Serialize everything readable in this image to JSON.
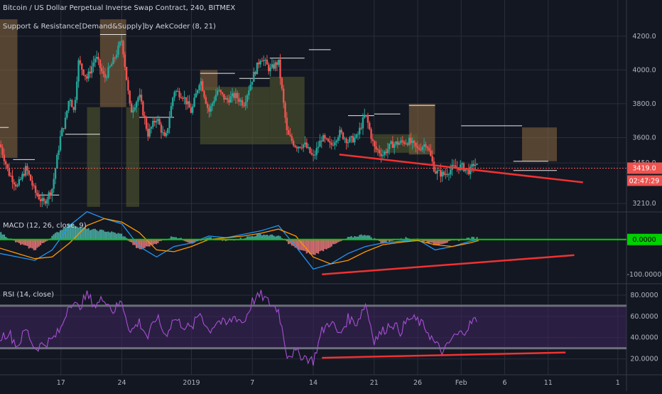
{
  "header": {
    "symbol_line": "Bitcoin / US Dollar Perpetual Inverse Swap Contract, 240, BITMEX",
    "indicator_line": "Support & Resistance[Demand&Supply]by AekCoder (8, 21)"
  },
  "colors": {
    "background": "#131722",
    "grid": "#2a2e39",
    "up": "#26a69a",
    "down": "#ef5350",
    "supply_zone": "#8d6a3f",
    "demand_zone": "#565c2d",
    "trendline": "#f03232",
    "macd_line": "#2196f3",
    "signal_line": "#ff9800",
    "macd_zero": "#00d000",
    "rsi_line": "#a84fd6",
    "rsi_band": "#3b2458",
    "price_tag": "#ef5350"
  },
  "chart_data": [
    {
      "type": "candlestick",
      "panel": "price",
      "title": "Bitcoin / US Dollar Perpetual Inverse Swap Contract, 240, BITMEX",
      "ylim": [
        3160,
        4330
      ],
      "y_ticks": [
        "4200.0",
        "4000.0",
        "3800.0",
        "3600.0",
        "3450.0",
        "3210.0"
      ],
      "y_tick_values": [
        4200,
        4000,
        3800,
        3600,
        3450,
        3210
      ],
      "last_price": "3419.0",
      "countdown": "02:47:29",
      "x_labels": [
        "17",
        "24",
        "2019",
        "7",
        "14",
        "21",
        "26",
        "Feb",
        "6",
        "11",
        "1"
      ],
      "x_label_days": [
        17,
        24,
        32,
        39,
        46,
        53,
        58,
        63,
        68,
        73,
        81
      ],
      "x_range_days": [
        10,
        82
      ],
      "close_path": [
        [
          10,
          3560
        ],
        [
          11,
          3390
        ],
        [
          12,
          3310
        ],
        [
          13,
          3420
        ],
        [
          14,
          3280
        ],
        [
          15,
          3210
        ],
        [
          16,
          3300
        ],
        [
          17,
          3620
        ],
        [
          17.5,
          3700
        ],
        [
          18,
          3850
        ],
        [
          18.5,
          3750
        ],
        [
          19,
          4050
        ],
        [
          20,
          3950
        ],
        [
          21,
          4080
        ],
        [
          22,
          3950
        ],
        [
          23,
          4050
        ],
        [
          24,
          4180
        ],
        [
          25,
          3750
        ],
        [
          26,
          3850
        ],
        [
          27,
          3620
        ],
        [
          28,
          3720
        ],
        [
          29,
          3580
        ],
        [
          30,
          3880
        ],
        [
          31,
          3850
        ],
        [
          32,
          3750
        ],
        [
          33,
          3950
        ],
        [
          34,
          3750
        ],
        [
          35,
          3880
        ],
        [
          36,
          3820
        ],
        [
          37,
          3850
        ],
        [
          38,
          3800
        ],
        [
          39,
          3950
        ],
        [
          40,
          4080
        ],
        [
          41,
          4000
        ],
        [
          42,
          4050
        ],
        [
          43,
          3620
        ],
        [
          44,
          3550
        ],
        [
          45,
          3560
        ],
        [
          46,
          3480
        ],
        [
          47,
          3600
        ],
        [
          48,
          3550
        ],
        [
          49,
          3630
        ],
        [
          50,
          3580
        ],
        [
          51,
          3600
        ],
        [
          52,
          3740
        ],
        [
          53,
          3540
        ],
        [
          54,
          3500
        ],
        [
          55,
          3560
        ],
        [
          56,
          3570
        ],
        [
          57,
          3580
        ],
        [
          58,
          3530
        ],
        [
          59,
          3570
        ],
        [
          60,
          3400
        ],
        [
          61,
          3380
        ],
        [
          62,
          3420
        ],
        [
          63,
          3430
        ],
        [
          64,
          3400
        ],
        [
          64.5,
          3450
        ],
        [
          65,
          3419
        ]
      ],
      "supply_zones": [
        {
          "x0": 10,
          "x1": 12,
          "y0": 3480,
          "y1": 4300
        },
        {
          "x0": 21.5,
          "x1": 24.5,
          "y0": 3780,
          "y1": 4300
        },
        {
          "x0": 33,
          "x1": 35,
          "y0": 3880,
          "y1": 4000
        },
        {
          "x0": 57,
          "x1": 60,
          "y0": 3500,
          "y1": 3800
        },
        {
          "x0": 70,
          "x1": 74,
          "y0": 3460,
          "y1": 3660
        }
      ],
      "demand_zones": [
        {
          "x0": 20,
          "x1": 21.5,
          "y0": 3190,
          "y1": 3780
        },
        {
          "x0": 24.5,
          "x1": 26,
          "y0": 3190,
          "y1": 3780
        },
        {
          "x0": 33,
          "x1": 41,
          "y0": 3560,
          "y1": 3900
        },
        {
          "x0": 41,
          "x1": 45,
          "y0": 3560,
          "y1": 3960
        },
        {
          "x0": 53,
          "x1": 58,
          "y0": 3510,
          "y1": 3620
        }
      ],
      "levels": [
        {
          "x0": 10,
          "x1": 11,
          "y": 3660
        },
        {
          "x0": 11.5,
          "x1": 14,
          "y": 3470
        },
        {
          "x0": 14.2,
          "x1": 16.8,
          "y": 3260
        },
        {
          "x0": 17.5,
          "x1": 21.5,
          "y": 3620
        },
        {
          "x0": 21.5,
          "x1": 24.5,
          "y": 4210
        },
        {
          "x0": 26,
          "x1": 30,
          "y": 3720
        },
        {
          "x0": 33,
          "x1": 37,
          "y": 3980
        },
        {
          "x0": 37.5,
          "x1": 41,
          "y": 3950
        },
        {
          "x0": 41,
          "x1": 45,
          "y": 4070
        },
        {
          "x0": 45.5,
          "x1": 48,
          "y": 4120
        },
        {
          "x0": 50,
          "x1": 53,
          "y": 3730
        },
        {
          "x0": 53,
          "x1": 56,
          "y": 3740
        },
        {
          "x0": 57,
          "x1": 60,
          "y": 3790
        },
        {
          "x0": 63,
          "x1": 66,
          "y": 3670
        },
        {
          "x0": 66,
          "x1": 70,
          "y": 3670
        },
        {
          "x0": 69,
          "x1": 73,
          "y": 3460
        },
        {
          "x0": 69,
          "x1": 74,
          "y": 3405
        }
      ],
      "trendline": {
        "x0": 49,
        "y0": 3500,
        "x1": 77,
        "y1": 3335
      }
    },
    {
      "type": "histogram+line",
      "panel": "macd",
      "title": "MACD (12, 26, close, 9)",
      "ylim": [
        -125,
        75
      ],
      "y_ticks": [
        "0.0000",
        "-100.0000"
      ],
      "y_tick_values": [
        0,
        -100
      ],
      "series": [
        {
          "name": "histogram",
          "points": [
            [
              10,
              20
            ],
            [
              12,
              -10
            ],
            [
              14,
              -30
            ],
            [
              16,
              10
            ],
            [
              18,
              45
            ],
            [
              20,
              30
            ],
            [
              22,
              25
            ],
            [
              24,
              15
            ],
            [
              26,
              -30
            ],
            [
              28,
              -10
            ],
            [
              30,
              10
            ],
            [
              32,
              -10
            ],
            [
              34,
              5
            ],
            [
              36,
              -5
            ],
            [
              38,
              5
            ],
            [
              40,
              15
            ],
            [
              42,
              10
            ],
            [
              44,
              -25
            ],
            [
              46,
              -45
            ],
            [
              48,
              -20
            ],
            [
              50,
              5
            ],
            [
              52,
              15
            ],
            [
              54,
              -10
            ],
            [
              56,
              5
            ],
            [
              58,
              2
            ],
            [
              60,
              -15
            ],
            [
              62,
              -5
            ],
            [
              64,
              5
            ],
            [
              65,
              5
            ]
          ]
        },
        {
          "name": "macd",
          "points": [
            [
              10,
              -40
            ],
            [
              12,
              -50
            ],
            [
              14,
              -60
            ],
            [
              16,
              -30
            ],
            [
              18,
              40
            ],
            [
              20,
              80
            ],
            [
              22,
              60
            ],
            [
              24,
              45
            ],
            [
              26,
              -20
            ],
            [
              28,
              -50
            ],
            [
              30,
              -20
            ],
            [
              32,
              -10
            ],
            [
              34,
              10
            ],
            [
              36,
              5
            ],
            [
              38,
              15
            ],
            [
              40,
              25
            ],
            [
              42,
              40
            ],
            [
              44,
              -20
            ],
            [
              46,
              -85
            ],
            [
              48,
              -70
            ],
            [
              50,
              -40
            ],
            [
              52,
              -20
            ],
            [
              54,
              -10
            ],
            [
              56,
              -5
            ],
            [
              58,
              0
            ],
            [
              60,
              -30
            ],
            [
              62,
              -20
            ],
            [
              64,
              -5
            ],
            [
              65,
              0
            ]
          ]
        },
        {
          "name": "signal",
          "points": [
            [
              10,
              -25
            ],
            [
              12,
              -40
            ],
            [
              14,
              -55
            ],
            [
              16,
              -50
            ],
            [
              18,
              -10
            ],
            [
              20,
              40
            ],
            [
              22,
              60
            ],
            [
              24,
              50
            ],
            [
              26,
              20
            ],
            [
              28,
              -30
            ],
            [
              30,
              -35
            ],
            [
              32,
              -20
            ],
            [
              34,
              0
            ],
            [
              36,
              5
            ],
            [
              38,
              10
            ],
            [
              40,
              18
            ],
            [
              42,
              30
            ],
            [
              44,
              10
            ],
            [
              46,
              -50
            ],
            [
              48,
              -70
            ],
            [
              50,
              -60
            ],
            [
              52,
              -35
            ],
            [
              54,
              -15
            ],
            [
              56,
              -8
            ],
            [
              58,
              -3
            ],
            [
              60,
              -15
            ],
            [
              62,
              -20
            ],
            [
              64,
              -10
            ],
            [
              65,
              -3
            ]
          ]
        }
      ],
      "trendline": {
        "x0": 47,
        "y0": -100,
        "x1": 76,
        "y1": -45
      }
    },
    {
      "type": "line",
      "panel": "rsi",
      "title": "RSI (14, close)",
      "ylim": [
        5,
        90
      ],
      "y_ticks": [
        "80.0000",
        "60.0000",
        "40.0000",
        "20.0000"
      ],
      "y_tick_values": [
        80,
        60,
        40,
        20
      ],
      "band": [
        30,
        70
      ],
      "series": [
        {
          "name": "rsi",
          "points": [
            [
              10,
              40
            ],
            [
              11,
              45
            ],
            [
              12,
              32
            ],
            [
              13,
              48
            ],
            [
              14,
              30
            ],
            [
              15,
              34
            ],
            [
              16,
              38
            ],
            [
              17,
              48
            ],
            [
              18,
              74
            ],
            [
              19,
              68
            ],
            [
              20,
              80
            ],
            [
              21,
              70
            ],
            [
              22,
              78
            ],
            [
              23,
              65
            ],
            [
              24,
              74
            ],
            [
              25,
              45
            ],
            [
              26,
              55
            ],
            [
              27,
              40
            ],
            [
              28,
              60
            ],
            [
              29,
              42
            ],
            [
              30,
              58
            ],
            [
              31,
              52
            ],
            [
              32,
              48
            ],
            [
              33,
              64
            ],
            [
              34,
              46
            ],
            [
              35,
              56
            ],
            [
              36,
              52
            ],
            [
              37,
              60
            ],
            [
              38,
              54
            ],
            [
              39,
              74
            ],
            [
              40,
              80
            ],
            [
              41,
              72
            ],
            [
              42,
              66
            ],
            [
              43,
              24
            ],
            [
              44,
              26
            ],
            [
              45,
              22
            ],
            [
              46,
              18
            ],
            [
              47,
              46
            ],
            [
              48,
              56
            ],
            [
              49,
              42
            ],
            [
              50,
              58
            ],
            [
              51,
              54
            ],
            [
              52,
              72
            ],
            [
              53,
              38
            ],
            [
              54,
              46
            ],
            [
              55,
              54
            ],
            [
              56,
              46
            ],
            [
              57,
              58
            ],
            [
              58,
              56
            ],
            [
              59,
              48
            ],
            [
              60,
              34
            ],
            [
              61,
              26
            ],
            [
              62,
              40
            ],
            [
              63,
              44
            ],
            [
              64,
              52
            ],
            [
              64.5,
              58
            ],
            [
              65,
              48
            ]
          ]
        }
      ],
      "trendline": {
        "x0": 47,
        "y0": 21,
        "x1": 75,
        "y1": 26
      }
    }
  ]
}
